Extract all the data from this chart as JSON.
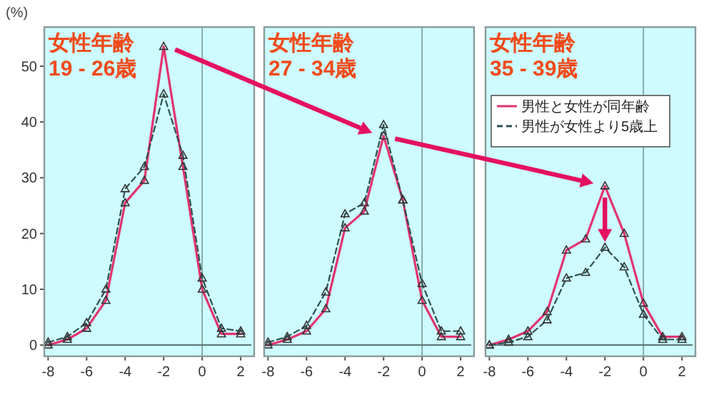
{
  "chart_data": [
    {
      "type": "line",
      "title": "女性年齢\n19 - 26歳",
      "ylabel": "(%)",
      "x": [
        -8,
        -7,
        -6,
        -5,
        -4,
        -3,
        -2,
        -1,
        0,
        1,
        2
      ],
      "xlim": [
        -8.2,
        2.7
      ],
      "ylim": [
        -2,
        57
      ],
      "xticks": [
        -8,
        -6,
        -4,
        -2,
        0,
        2
      ],
      "yticks": [
        0,
        10,
        20,
        30,
        40,
        50
      ],
      "grid": false,
      "legend": false,
      "ref_lines": [
        {
          "axis": "x",
          "value": 0,
          "color": "#7a9a9a"
        },
        {
          "axis": "y",
          "value": 0,
          "color": "#556b6b"
        }
      ],
      "series": [
        {
          "color": "#e2336f",
          "line_style": "solid",
          "marker": "triangle",
          "values": [
            0,
            1,
            3,
            8,
            25.5,
            29.5,
            53.5,
            32,
            10,
            2,
            2
          ]
        },
        {
          "color": "#2f4f4f",
          "line_style": "dashed",
          "marker": "triangle",
          "values": [
            0.5,
            1.5,
            4,
            10,
            28,
            32,
            45,
            34,
            12,
            3,
            2.5
          ]
        }
      ]
    },
    {
      "type": "line",
      "title": "女性年齢\n27 - 34歳",
      "x": [
        -8,
        -7,
        -6,
        -5,
        -4,
        -3,
        -2,
        -1,
        0,
        1,
        2
      ],
      "xlim": [
        -8.2,
        2.7
      ],
      "ylim": [
        -2,
        57
      ],
      "xticks": [
        -8,
        -6,
        -4,
        -2,
        0,
        2
      ],
      "tick_labels": "x",
      "grid": false,
      "legend": false,
      "ref_lines": [
        {
          "axis": "x",
          "value": 0,
          "color": "#7a9a9a"
        },
        {
          "axis": "y",
          "value": 0,
          "color": "#556b6b"
        }
      ],
      "series": [
        {
          "color": "#e2336f",
          "line_style": "solid",
          "marker": "triangle",
          "values": [
            0,
            1,
            2.5,
            6.5,
            21,
            24,
            37.5,
            26,
            8,
            1.5,
            1.5
          ]
        },
        {
          "color": "#2f4f4f",
          "line_style": "dashed",
          "marker": "triangle",
          "values": [
            0.5,
            1.5,
            3.5,
            9.5,
            23.5,
            25.5,
            39.5,
            26,
            11,
            2.5,
            2.5
          ]
        }
      ]
    },
    {
      "type": "line",
      "title": "女性年齢\n35 - 39歳",
      "x": [
        -8,
        -7,
        -6,
        -5,
        -4,
        -3,
        -2,
        -1,
        0,
        1,
        2
      ],
      "xlim": [
        -8.2,
        2.7
      ],
      "ylim": [
        -2,
        57
      ],
      "xticks": [
        -8,
        -6,
        -4,
        -2,
        0,
        2
      ],
      "tick_labels": "x",
      "grid": false,
      "legend": "top left",
      "ref_lines": [
        {
          "axis": "x",
          "value": 0,
          "color": "#7a9a9a"
        },
        {
          "axis": "y",
          "value": 0,
          "color": "#556b6b"
        }
      ],
      "series": [
        {
          "name": "男性と女性が同年齢",
          "color": "#e2336f",
          "line_style": "solid",
          "marker": "triangle",
          "values": [
            0,
            1,
            2.5,
            6,
            17,
            19,
            28.5,
            20,
            7.5,
            1.5,
            1.5
          ]
        },
        {
          "name": "男性が女性より5歳上",
          "color": "#2f4f4f",
          "line_style": "dashed",
          "marker": "triangle",
          "values": [
            0,
            0.5,
            1.5,
            4.5,
            12,
            13,
            17.5,
            14,
            5.5,
            1,
            1
          ]
        }
      ]
    }
  ]
}
